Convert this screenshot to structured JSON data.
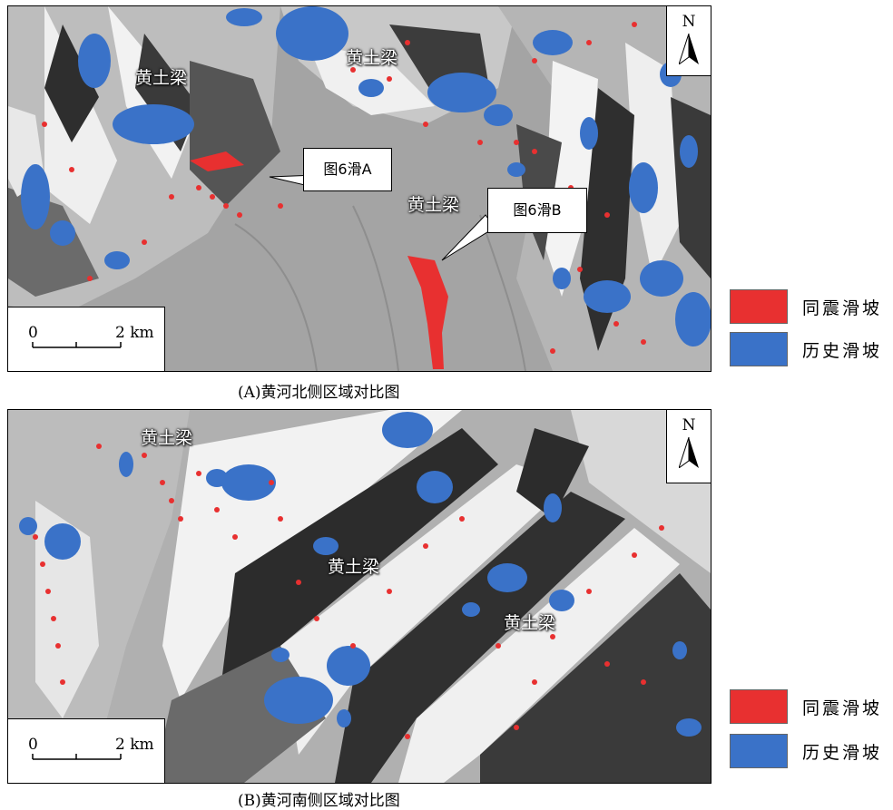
{
  "colors": {
    "coseismic": "#e83030",
    "historical": "#3a72c8"
  },
  "panel_a": {
    "caption": "(A)黄河北侧区域对比图",
    "ridge_labels": [
      "黄土梁",
      "黄土梁",
      "黄土梁"
    ],
    "callouts": [
      "图6滑A",
      "图6滑B"
    ],
    "north": "N",
    "scale_start": "0",
    "scale_end": "2 km"
  },
  "panel_b": {
    "caption": "(B)黄河南侧区域对比图",
    "ridge_labels": [
      "黄土梁",
      "黄土梁",
      "黄土梁"
    ],
    "north": "N",
    "scale_start": "0",
    "scale_end": "2 km"
  },
  "legend": {
    "coseismic": "同震滑坡",
    "historical": "历史滑坡"
  }
}
